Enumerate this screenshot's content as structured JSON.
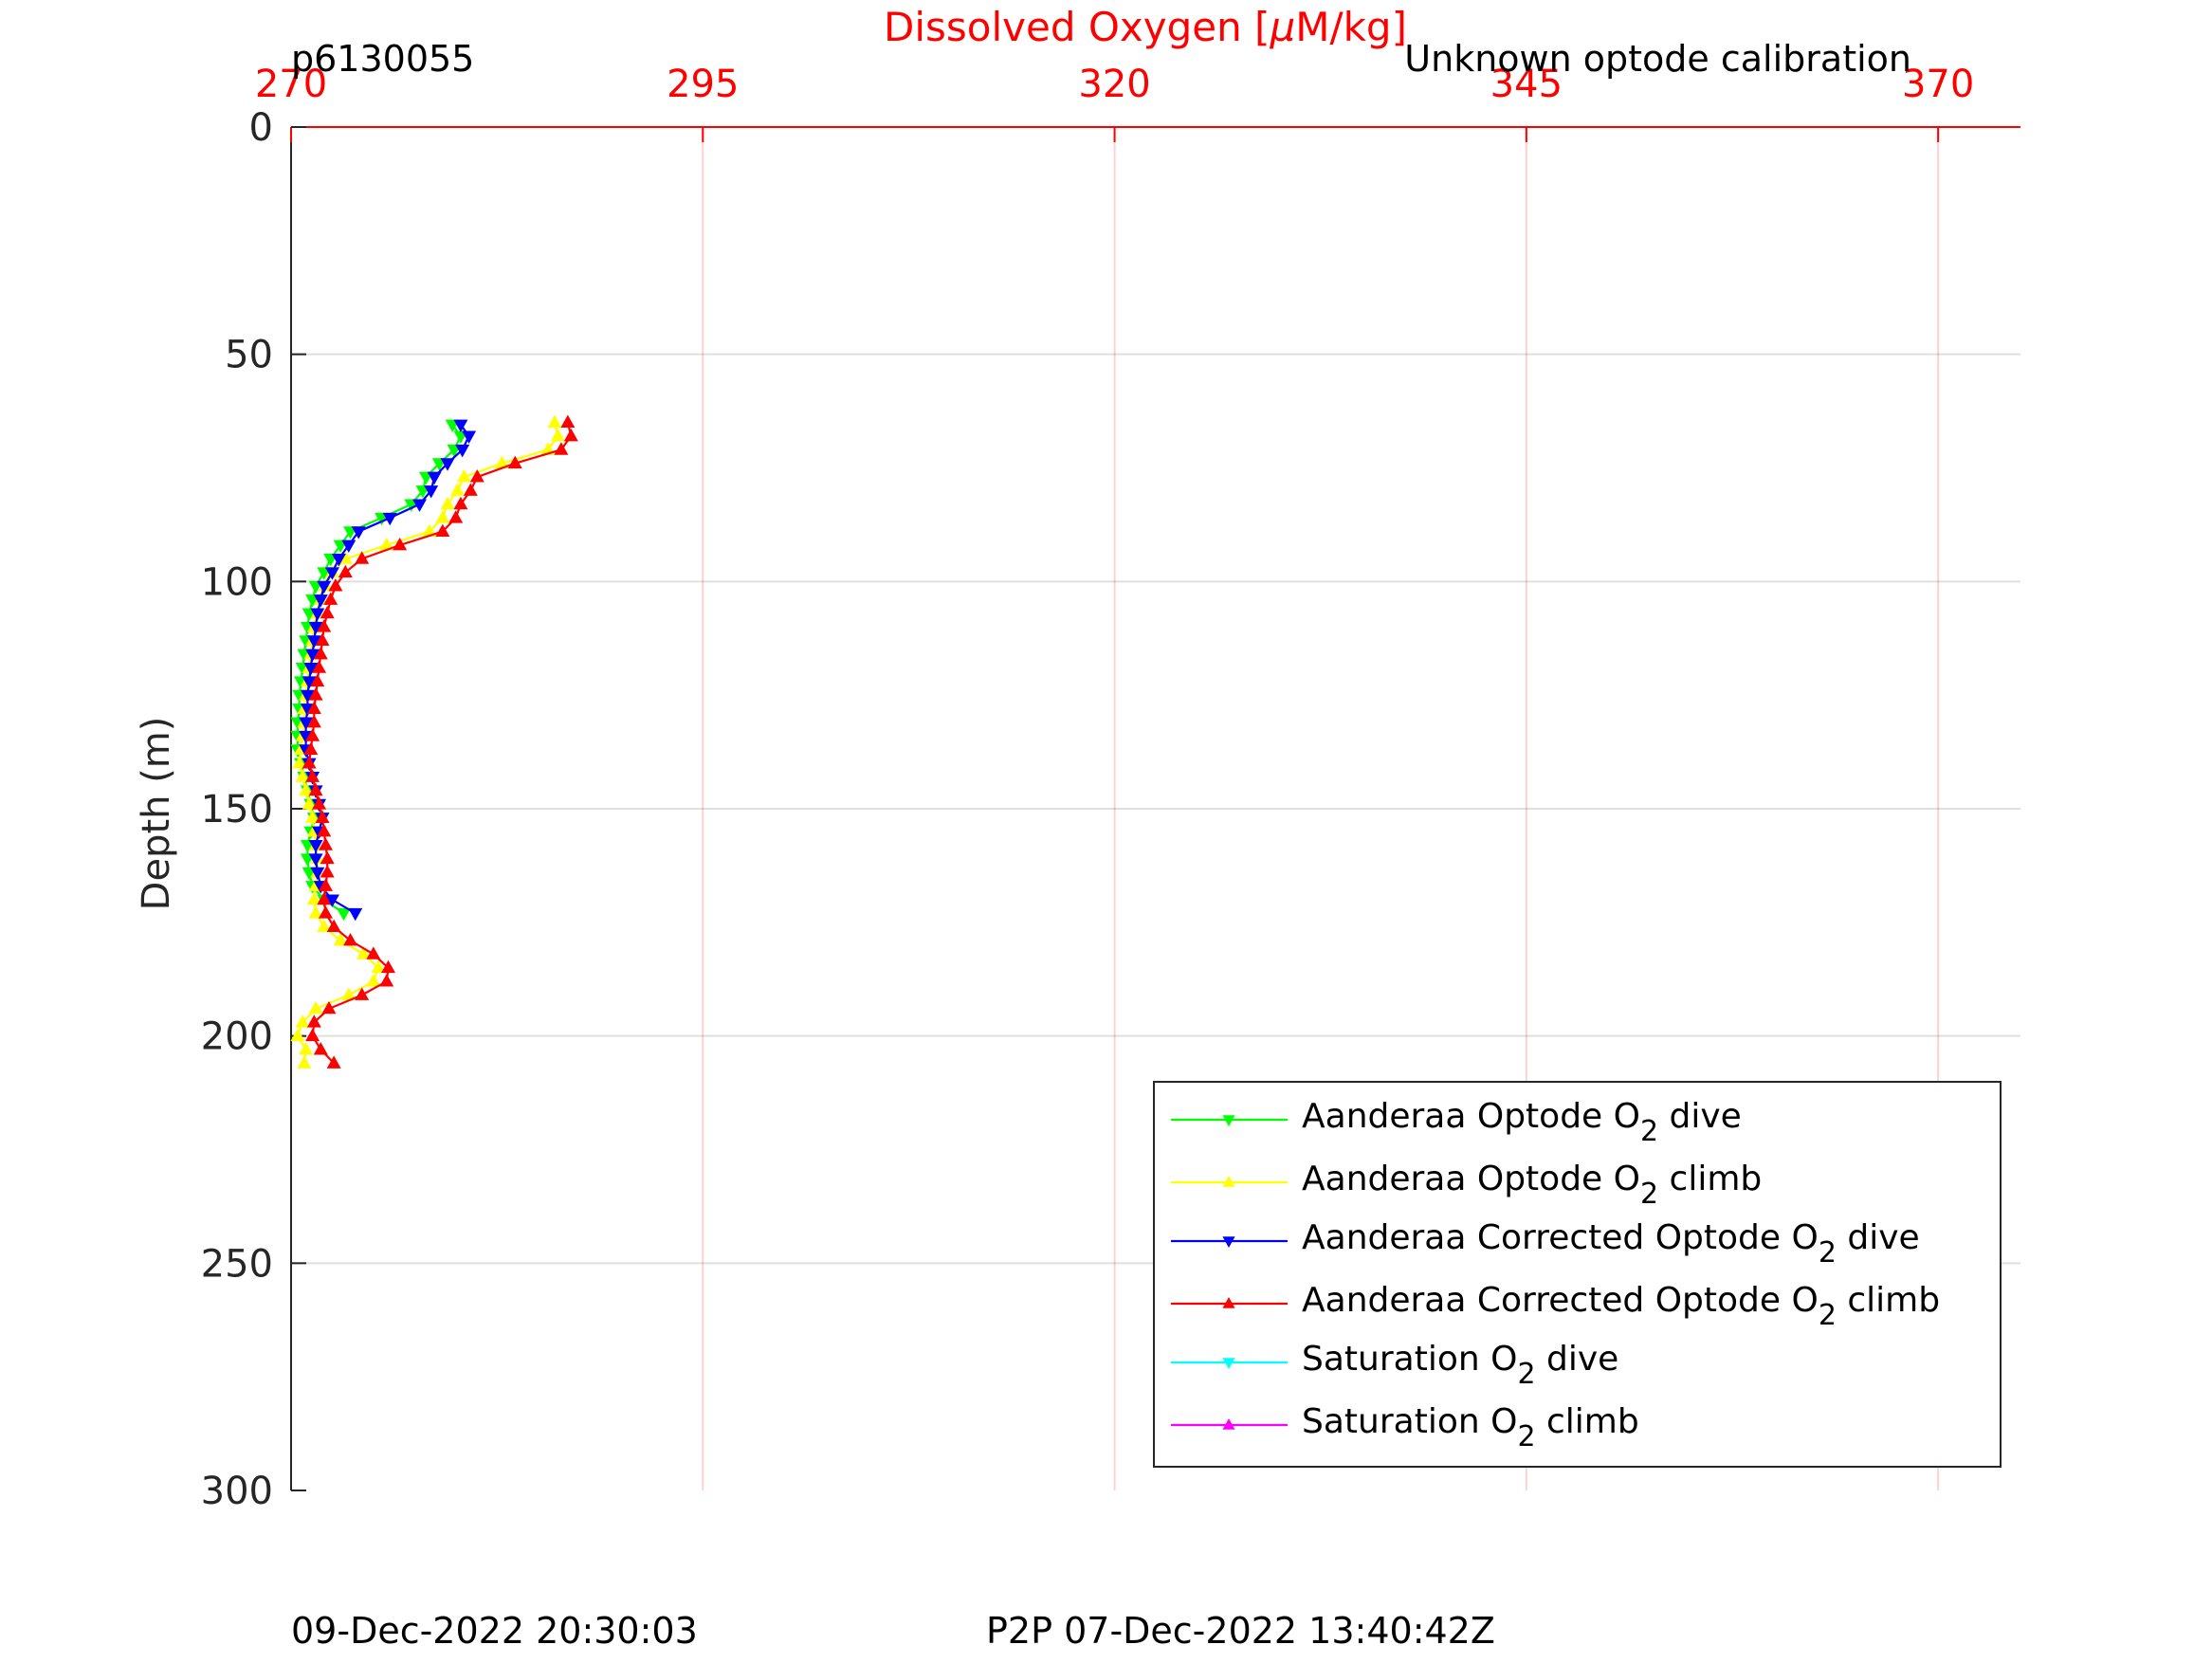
{
  "chart_data": {
    "type": "line",
    "title": "Dissolved Oxygen [μM/kg]",
    "title_prefix": "Dissolved Oxygen [",
    "title_mu": "μ",
    "title_suffix": "M/kg]",
    "top_left_label": "p6130055",
    "top_right_label": "Unknown optode calibration",
    "ylabel": "Depth (m)",
    "xlim": [
      270,
      375
    ],
    "ylim": [
      0,
      300
    ],
    "y_reversed": true,
    "x_axis_position": "top",
    "x_ticks": [
      270,
      295,
      320,
      345,
      370
    ],
    "x_tick_labels": [
      "270",
      "295",
      "320",
      "345",
      "370"
    ],
    "y_ticks": [
      0,
      50,
      100,
      150,
      200,
      250,
      300
    ],
    "y_tick_labels": [
      "0",
      "50",
      "100",
      "150",
      "200",
      "250",
      "300"
    ],
    "grid": true,
    "axis_color": "#ff0000",
    "legend_position": "bottom-right",
    "footer_left": "09-Dec-2022 20:30:03",
    "footer_right": "P2P 07-Dec-2022 13:40:42Z",
    "series": [
      {
        "name_parts": [
          "Aanderaa Optode O",
          "2",
          " dive"
        ],
        "color": "#00ff00",
        "marker": "down-triangle",
        "points": [
          [
            279.8,
            65.5
          ],
          [
            280.3,
            68
          ],
          [
            279.9,
            71
          ],
          [
            279.0,
            74
          ],
          [
            278.2,
            77
          ],
          [
            278.0,
            80
          ],
          [
            277.3,
            83
          ],
          [
            275.5,
            86
          ],
          [
            273.6,
            89
          ],
          [
            273.0,
            92
          ],
          [
            272.4,
            95
          ],
          [
            272.0,
            98
          ],
          [
            271.5,
            101
          ],
          [
            271.3,
            104
          ],
          [
            271.1,
            107
          ],
          [
            271.0,
            110
          ],
          [
            270.9,
            113
          ],
          [
            270.8,
            116
          ],
          [
            270.7,
            119
          ],
          [
            270.6,
            122
          ],
          [
            270.5,
            125
          ],
          [
            270.5,
            128
          ],
          [
            270.4,
            131
          ],
          [
            270.4,
            134
          ],
          [
            270.4,
            137
          ],
          [
            270.6,
            140
          ],
          [
            270.8,
            143
          ],
          [
            271.0,
            146
          ],
          [
            271.2,
            149
          ],
          [
            271.4,
            152
          ],
          [
            271.2,
            155
          ],
          [
            271.0,
            158
          ],
          [
            271.0,
            161
          ],
          [
            271.1,
            164
          ],
          [
            271.3,
            167
          ],
          [
            272.0,
            170
          ],
          [
            273.2,
            173
          ]
        ]
      },
      {
        "name_parts": [
          "Aanderaa Optode O",
          "2",
          " climb"
        ],
        "color": "#ffff00",
        "marker": "up-triangle",
        "points": [
          [
            270.8,
            206
          ],
          [
            270.9,
            203
          ],
          [
            270.4,
            200
          ],
          [
            270.7,
            197
          ],
          [
            271.5,
            194
          ],
          [
            273.5,
            191
          ],
          [
            275.0,
            188
          ],
          [
            275.3,
            185
          ],
          [
            274.4,
            182
          ],
          [
            273.0,
            179
          ],
          [
            272.0,
            176
          ],
          [
            271.5,
            173
          ],
          [
            271.4,
            170
          ],
          [
            271.5,
            167
          ],
          [
            271.6,
            164
          ],
          [
            271.6,
            161
          ],
          [
            271.5,
            158
          ],
          [
            271.4,
            155
          ],
          [
            271.3,
            152
          ],
          [
            271.1,
            149
          ],
          [
            270.9,
            146
          ],
          [
            270.7,
            143
          ],
          [
            270.5,
            140
          ],
          [
            270.6,
            137
          ],
          [
            270.7,
            134
          ],
          [
            270.8,
            131
          ],
          [
            270.8,
            128
          ],
          [
            270.9,
            125
          ],
          [
            271.0,
            122
          ],
          [
            271.1,
            119
          ],
          [
            271.2,
            116
          ],
          [
            271.3,
            113
          ],
          [
            271.4,
            110
          ],
          [
            271.6,
            107
          ],
          [
            271.8,
            104
          ],
          [
            272.1,
            101
          ],
          [
            272.5,
            98
          ],
          [
            273.3,
            95
          ],
          [
            275.8,
            92
          ],
          [
            278.4,
            89
          ],
          [
            279.2,
            86
          ],
          [
            279.5,
            83
          ],
          [
            280.1,
            80
          ],
          [
            280.5,
            77
          ],
          [
            282.8,
            74
          ],
          [
            285.6,
            71
          ],
          [
            286.2,
            68
          ],
          [
            286.0,
            65
          ]
        ]
      },
      {
        "name_parts": [
          "Aanderaa Corrected Optode O",
          "2",
          " dive"
        ],
        "color": "#0000ff",
        "marker": "down-triangle",
        "points": [
          [
            280.3,
            65.5
          ],
          [
            280.8,
            68
          ],
          [
            280.4,
            71
          ],
          [
            279.5,
            74
          ],
          [
            278.7,
            77
          ],
          [
            278.5,
            80
          ],
          [
            277.8,
            83
          ],
          [
            276.0,
            86
          ],
          [
            274.1,
            89
          ],
          [
            273.5,
            92
          ],
          [
            272.9,
            95
          ],
          [
            272.5,
            98
          ],
          [
            272.0,
            101
          ],
          [
            271.8,
            104
          ],
          [
            271.6,
            107
          ],
          [
            271.5,
            110
          ],
          [
            271.4,
            113
          ],
          [
            271.3,
            116
          ],
          [
            271.2,
            119
          ],
          [
            271.1,
            122
          ],
          [
            271.0,
            125
          ],
          [
            271.0,
            128
          ],
          [
            270.9,
            131
          ],
          [
            270.9,
            134
          ],
          [
            270.9,
            137
          ],
          [
            271.1,
            140
          ],
          [
            271.3,
            143
          ],
          [
            271.5,
            146
          ],
          [
            271.7,
            149
          ],
          [
            271.9,
            152
          ],
          [
            271.7,
            155
          ],
          [
            271.5,
            158
          ],
          [
            271.5,
            161
          ],
          [
            271.6,
            164
          ],
          [
            271.8,
            167
          ],
          [
            272.5,
            170
          ],
          [
            273.9,
            173
          ]
        ]
      },
      {
        "name_parts": [
          "Aanderaa Corrected Optode O",
          "2",
          " climb"
        ],
        "color": "#ff0000",
        "marker": "up-triangle",
        "points": [
          [
            272.6,
            206
          ],
          [
            271.8,
            203
          ],
          [
            271.3,
            200
          ],
          [
            271.4,
            197
          ],
          [
            272.3,
            194
          ],
          [
            274.3,
            191
          ],
          [
            275.8,
            188
          ],
          [
            275.9,
            185
          ],
          [
            275.0,
            182
          ],
          [
            273.6,
            179
          ],
          [
            272.6,
            176
          ],
          [
            272.1,
            173
          ],
          [
            272.0,
            170
          ],
          [
            272.1,
            167
          ],
          [
            272.2,
            164
          ],
          [
            272.2,
            161
          ],
          [
            272.1,
            158
          ],
          [
            272.0,
            155
          ],
          [
            271.9,
            152
          ],
          [
            271.7,
            149
          ],
          [
            271.5,
            146
          ],
          [
            271.3,
            143
          ],
          [
            271.1,
            140
          ],
          [
            271.2,
            137
          ],
          [
            271.3,
            134
          ],
          [
            271.4,
            131
          ],
          [
            271.4,
            128
          ],
          [
            271.5,
            125
          ],
          [
            271.6,
            122
          ],
          [
            271.7,
            119
          ],
          [
            271.8,
            116
          ],
          [
            271.9,
            113
          ],
          [
            272.0,
            110
          ],
          [
            272.2,
            107
          ],
          [
            272.4,
            104
          ],
          [
            272.7,
            101
          ],
          [
            273.3,
            98
          ],
          [
            274.3,
            95
          ],
          [
            276.6,
            92
          ],
          [
            279.2,
            89
          ],
          [
            280.0,
            86
          ],
          [
            280.3,
            83
          ],
          [
            280.9,
            80
          ],
          [
            281.3,
            77
          ],
          [
            283.6,
            74
          ],
          [
            286.4,
            71
          ],
          [
            287.0,
            68
          ],
          [
            286.8,
            65
          ]
        ]
      },
      {
        "name_parts": [
          "Saturation O",
          "2",
          " dive"
        ],
        "color": "#00ffff",
        "marker": "down-triangle",
        "points": []
      },
      {
        "name_parts": [
          "Saturation O",
          "2",
          " climb"
        ],
        "color": "#ff00ff",
        "marker": "up-triangle",
        "points": []
      }
    ]
  }
}
